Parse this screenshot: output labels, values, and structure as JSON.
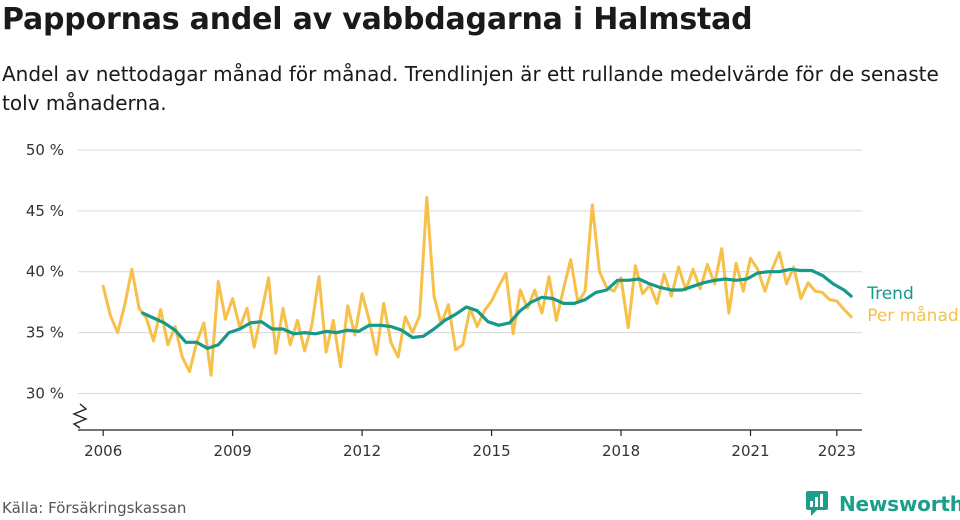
{
  "title": "Pappornas andel av vabbdagarna i Halmstad",
  "subtitle": "Andel av nettodagar månad för månad. Trendlinjen är ett rullande medelvärde för de senaste tolv månaderna.",
  "source": "Källa: Försäkringskassan",
  "brand": "Newsworthy",
  "colors": {
    "trend": "#16998a",
    "monthly": "#f7c04a",
    "grid": "#d9d9d9",
    "brand": "#1b9e8a"
  },
  "chart_data": {
    "type": "line",
    "x_ticks": [
      "2006",
      "2009",
      "2012",
      "2015",
      "2018",
      "2021",
      "2023"
    ],
    "y_ticks": [
      "30 %",
      "35 %",
      "40 %",
      "45 %",
      "50 %"
    ],
    "y_tick_values": [
      30,
      35,
      40,
      45,
      50
    ],
    "ylim": [
      27,
      50
    ],
    "xlim": [
      "2005-06",
      "2023-08"
    ],
    "grid": true,
    "series": [
      {
        "name": "Trend",
        "points": [
          [
            "2006-12",
            36.6
          ],
          [
            "2007-03",
            36.2
          ],
          [
            "2007-06",
            35.8
          ],
          [
            "2007-09",
            35.2
          ],
          [
            "2007-12",
            34.2
          ],
          [
            "2008-03",
            34.2
          ],
          [
            "2008-06",
            33.7
          ],
          [
            "2008-09",
            34.0
          ],
          [
            "2008-12",
            35.0
          ],
          [
            "2009-03",
            35.3
          ],
          [
            "2009-06",
            35.8
          ],
          [
            "2009-09",
            35.9
          ],
          [
            "2009-12",
            35.3
          ],
          [
            "2010-03",
            35.3
          ],
          [
            "2010-06",
            34.9
          ],
          [
            "2010-09",
            35.0
          ],
          [
            "2010-12",
            34.9
          ],
          [
            "2011-03",
            35.1
          ],
          [
            "2011-06",
            35.0
          ],
          [
            "2011-09",
            35.2
          ],
          [
            "2011-12",
            35.1
          ],
          [
            "2012-03",
            35.6
          ],
          [
            "2012-06",
            35.6
          ],
          [
            "2012-09",
            35.5
          ],
          [
            "2012-12",
            35.2
          ],
          [
            "2013-03",
            34.6
          ],
          [
            "2013-06",
            34.7
          ],
          [
            "2013-09",
            35.3
          ],
          [
            "2013-12",
            36.0
          ],
          [
            "2014-03",
            36.5
          ],
          [
            "2014-06",
            37.1
          ],
          [
            "2014-09",
            36.8
          ],
          [
            "2014-12",
            35.9
          ],
          [
            "2015-03",
            35.6
          ],
          [
            "2015-06",
            35.8
          ],
          [
            "2015-09",
            36.8
          ],
          [
            "2015-12",
            37.5
          ],
          [
            "2016-03",
            37.9
          ],
          [
            "2016-06",
            37.8
          ],
          [
            "2016-09",
            37.4
          ],
          [
            "2016-12",
            37.4
          ],
          [
            "2017-03",
            37.7
          ],
          [
            "2017-06",
            38.3
          ],
          [
            "2017-09",
            38.5
          ],
          [
            "2017-12",
            39.3
          ],
          [
            "2018-03",
            39.3
          ],
          [
            "2018-06",
            39.4
          ],
          [
            "2018-09",
            39.0
          ],
          [
            "2018-12",
            38.7
          ],
          [
            "2019-03",
            38.5
          ],
          [
            "2019-06",
            38.5
          ],
          [
            "2019-09",
            38.8
          ],
          [
            "2019-12",
            39.1
          ],
          [
            "2020-03",
            39.3
          ],
          [
            "2020-06",
            39.4
          ],
          [
            "2020-09",
            39.3
          ],
          [
            "2020-12",
            39.4
          ],
          [
            "2021-03",
            39.9
          ],
          [
            "2021-06",
            40.0
          ],
          [
            "2021-09",
            40.0
          ],
          [
            "2021-12",
            40.2
          ],
          [
            "2022-03",
            40.1
          ],
          [
            "2022-06",
            40.1
          ],
          [
            "2022-09",
            39.7
          ],
          [
            "2022-12",
            39.0
          ],
          [
            "2023-03",
            38.5
          ],
          [
            "2023-05",
            38.0
          ]
        ]
      },
      {
        "name": "Per månad",
        "points": [
          [
            "2006-01",
            38.8
          ],
          [
            "2006-03",
            36.4
          ],
          [
            "2006-05",
            35.0
          ],
          [
            "2006-07",
            37.3
          ],
          [
            "2006-09",
            40.2
          ],
          [
            "2006-11",
            37.0
          ],
          [
            "2007-01",
            36.2
          ],
          [
            "2007-03",
            34.3
          ],
          [
            "2007-05",
            36.9
          ],
          [
            "2007-07",
            34.0
          ],
          [
            "2007-09",
            35.5
          ],
          [
            "2007-11",
            33.0
          ],
          [
            "2008-01",
            31.8
          ],
          [
            "2008-03",
            34.2
          ],
          [
            "2008-05",
            35.8
          ],
          [
            "2008-07",
            31.5
          ],
          [
            "2008-09",
            39.2
          ],
          [
            "2008-11",
            36.1
          ],
          [
            "2009-01",
            37.8
          ],
          [
            "2009-03",
            35.4
          ],
          [
            "2009-05",
            37.0
          ],
          [
            "2009-07",
            33.8
          ],
          [
            "2009-09",
            36.6
          ],
          [
            "2009-11",
            39.5
          ],
          [
            "2010-01",
            33.3
          ],
          [
            "2010-03",
            37.0
          ],
          [
            "2010-05",
            34.0
          ],
          [
            "2010-07",
            36.0
          ],
          [
            "2010-09",
            33.5
          ],
          [
            "2010-11",
            35.6
          ],
          [
            "2011-01",
            39.6
          ],
          [
            "2011-03",
            33.4
          ],
          [
            "2011-05",
            36.0
          ],
          [
            "2011-07",
            32.2
          ],
          [
            "2011-09",
            37.2
          ],
          [
            "2011-11",
            34.8
          ],
          [
            "2012-01",
            38.2
          ],
          [
            "2012-03",
            36.0
          ],
          [
            "2012-05",
            33.2
          ],
          [
            "2012-07",
            37.4
          ],
          [
            "2012-09",
            34.2
          ],
          [
            "2012-11",
            33.0
          ],
          [
            "2013-01",
            36.3
          ],
          [
            "2013-03",
            35.0
          ],
          [
            "2013-05",
            36.4
          ],
          [
            "2013-07",
            46.1
          ],
          [
            "2013-09",
            38.0
          ],
          [
            "2013-11",
            35.7
          ],
          [
            "2014-01",
            37.3
          ],
          [
            "2014-03",
            33.6
          ],
          [
            "2014-05",
            34.0
          ],
          [
            "2014-07",
            37.0
          ],
          [
            "2014-09",
            35.5
          ],
          [
            "2014-11",
            36.8
          ],
          [
            "2015-01",
            37.6
          ],
          [
            "2015-03",
            38.8
          ],
          [
            "2015-05",
            39.9
          ],
          [
            "2015-07",
            34.9
          ],
          [
            "2015-09",
            38.5
          ],
          [
            "2015-11",
            37.0
          ],
          [
            "2016-01",
            38.5
          ],
          [
            "2016-03",
            36.6
          ],
          [
            "2016-05",
            39.6
          ],
          [
            "2016-07",
            36.0
          ],
          [
            "2016-09",
            38.6
          ],
          [
            "2016-11",
            41.0
          ],
          [
            "2017-01",
            37.5
          ],
          [
            "2017-03",
            38.4
          ],
          [
            "2017-05",
            45.5
          ],
          [
            "2017-07",
            40.0
          ],
          [
            "2017-09",
            38.7
          ],
          [
            "2017-11",
            38.4
          ],
          [
            "2018-01",
            39.5
          ],
          [
            "2018-03",
            35.4
          ],
          [
            "2018-05",
            40.5
          ],
          [
            "2018-07",
            38.2
          ],
          [
            "2018-09",
            38.9
          ],
          [
            "2018-11",
            37.4
          ],
          [
            "2019-01",
            39.8
          ],
          [
            "2019-03",
            38.0
          ],
          [
            "2019-05",
            40.4
          ],
          [
            "2019-07",
            38.5
          ],
          [
            "2019-09",
            40.2
          ],
          [
            "2019-11",
            38.6
          ],
          [
            "2020-01",
            40.6
          ],
          [
            "2020-03",
            39.0
          ],
          [
            "2020-05",
            41.9
          ],
          [
            "2020-07",
            36.6
          ],
          [
            "2020-09",
            40.7
          ],
          [
            "2020-11",
            38.4
          ],
          [
            "2021-01",
            41.1
          ],
          [
            "2021-03",
            40.2
          ],
          [
            "2021-05",
            38.4
          ],
          [
            "2021-07",
            40.2
          ],
          [
            "2021-09",
            41.6
          ],
          [
            "2021-11",
            39.0
          ],
          [
            "2022-01",
            40.4
          ],
          [
            "2022-03",
            37.8
          ],
          [
            "2022-05",
            39.1
          ],
          [
            "2022-07",
            38.4
          ],
          [
            "2022-09",
            38.3
          ],
          [
            "2022-11",
            37.7
          ],
          [
            "2023-01",
            37.6
          ],
          [
            "2023-03",
            36.9
          ],
          [
            "2023-05",
            36.3
          ]
        ]
      }
    ]
  }
}
